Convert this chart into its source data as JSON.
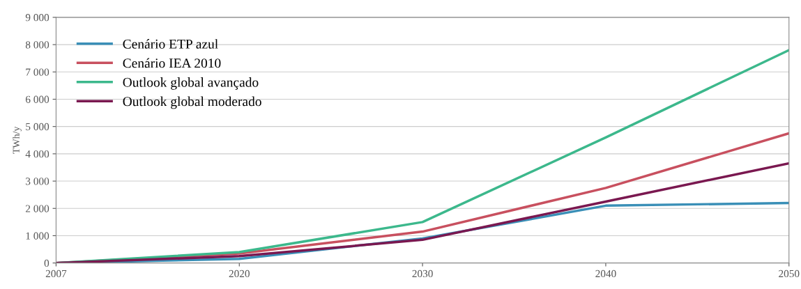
{
  "chart_data": {
    "type": "line",
    "ylabel": "TWh/y",
    "categories": [
      "2007",
      "2020",
      "2030",
      "2040",
      "2050"
    ],
    "series": [
      {
        "name": "Cenário ETP azul",
        "color": "#3a8fb7",
        "values": [
          0,
          150,
          900,
          2100,
          2200
        ]
      },
      {
        "name": "Cenário IEA 2010",
        "color": "#c8505f",
        "values": [
          0,
          350,
          1150,
          2750,
          4750
        ]
      },
      {
        "name": "Outlook global avançado",
        "color": "#3cb88c",
        "values": [
          0,
          400,
          1500,
          4600,
          7800
        ]
      },
      {
        "name": "Outlook global moderado",
        "color": "#7a1850",
        "values": [
          0,
          250,
          850,
          2250,
          3650
        ]
      }
    ],
    "ylim": [
      0,
      9000
    ],
    "yticks": [
      0,
      {
        "value": 1000,
        "label": "1 000"
      },
      {
        "value": 2000,
        "label": "2 000"
      },
      {
        "value": 3000,
        "label": "3 000"
      },
      {
        "value": 4000,
        "label": "4 000"
      },
      {
        "value": 5000,
        "label": "5 000"
      },
      {
        "value": 6000,
        "label": "6 000"
      },
      {
        "value": 7000,
        "label": "7 000"
      },
      {
        "value": 8000,
        "label": "8 000"
      },
      {
        "value": 9000,
        "label": "9 000"
      }
    ],
    "grid": "y",
    "legend": "top left"
  }
}
